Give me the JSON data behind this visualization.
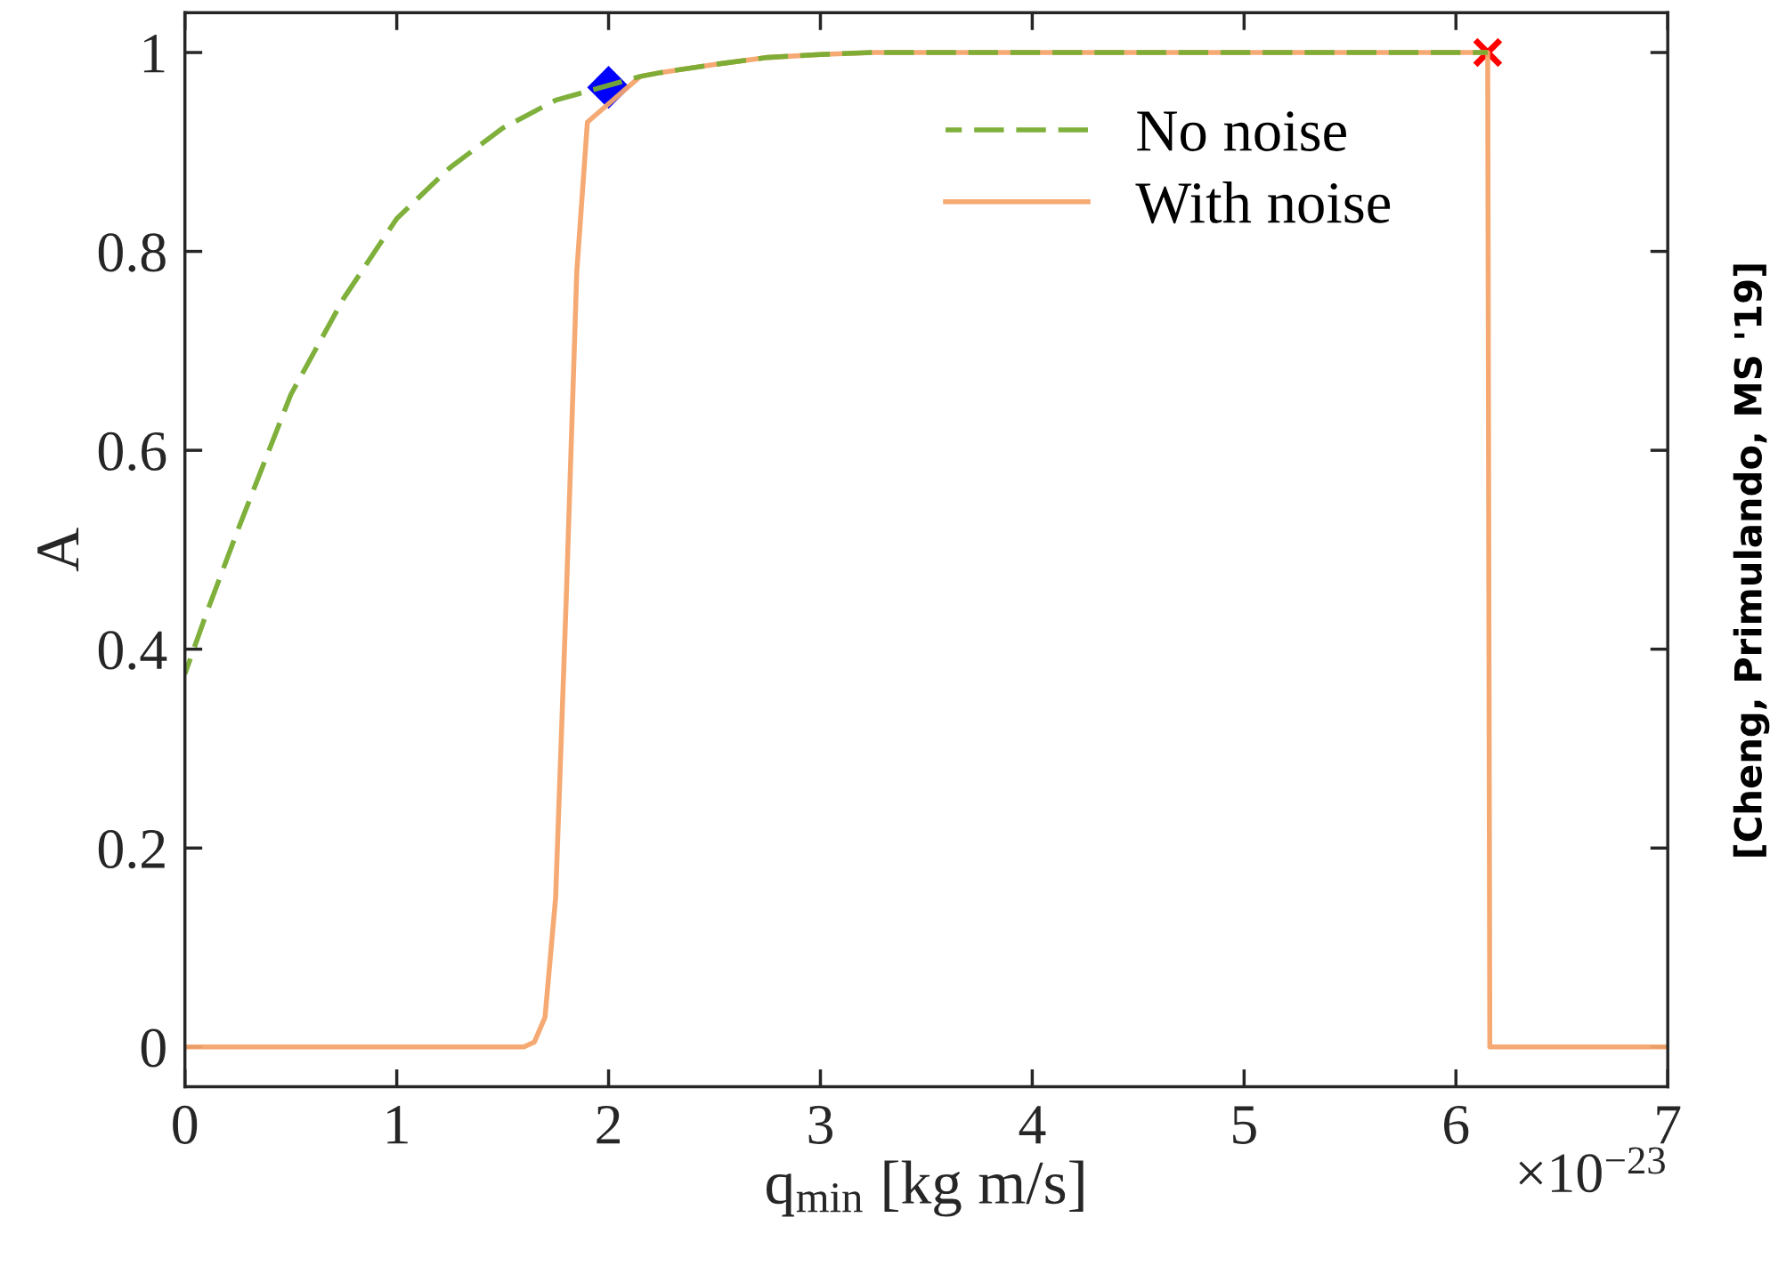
{
  "chart_data": {
    "type": "line",
    "xlabel": "q$_{min}$ [kg m/s]",
    "ylabel": "A",
    "xlim": [
      0,
      7
    ],
    "xticks": [
      0,
      1,
      2,
      3,
      4,
      5,
      6,
      7
    ],
    "ylim": [
      -0.04,
      1.04
    ],
    "yticks": [
      0,
      0.2,
      0.4,
      0.6,
      0.8,
      1
    ],
    "grid": false,
    "legend": "top right",
    "series": [
      {
        "name": "No noise",
        "color": "#77ac30",
        "line_style": "dashed",
        "marker": "none",
        "x": [
          0,
          0.1,
          0.25,
          0.5,
          0.75,
          1.0,
          1.25,
          1.5,
          1.75,
          1.85,
          2.15,
          2.25,
          2.5,
          2.75,
          3.0,
          3.25,
          6.15
        ],
        "values": [
          0.375,
          0.435,
          0.52,
          0.656,
          0.753,
          0.833,
          0.884,
          0.924,
          0.952,
          0.958,
          0.976,
          0.98,
          0.988,
          0.995,
          0.998,
          1.0,
          1.0
        ]
      },
      {
        "name": "With noise",
        "color": "#f4a46c",
        "line_style": "solid",
        "marker": "none",
        "x": [
          0,
          1.6,
          1.65,
          1.7,
          1.75,
          1.8,
          1.85,
          1.9,
          2.15,
          2.25,
          2.5,
          2.75,
          3.0,
          3.25,
          6.15,
          6.16,
          7
        ],
        "values": [
          0,
          0,
          0.005,
          0.03,
          0.15,
          0.45,
          0.78,
          0.93,
          0.976,
          0.98,
          0.988,
          0.995,
          0.998,
          1.0,
          1.0,
          0,
          0
        ]
      },
      {
        "type": "scatter",
        "color": "#0000ff",
        "marker": "diamond",
        "x": [
          2.0
        ],
        "values": [
          0.965
        ]
      },
      {
        "type": "scatter",
        "color": "#ff0000",
        "marker": "cross",
        "x": [
          6.15
        ],
        "values": [
          1.0
        ]
      }
    ],
    "annotations": [
      "×10$^{−23}$",
      "[Cheng, Primulando, MS '19]"
    ]
  }
}
